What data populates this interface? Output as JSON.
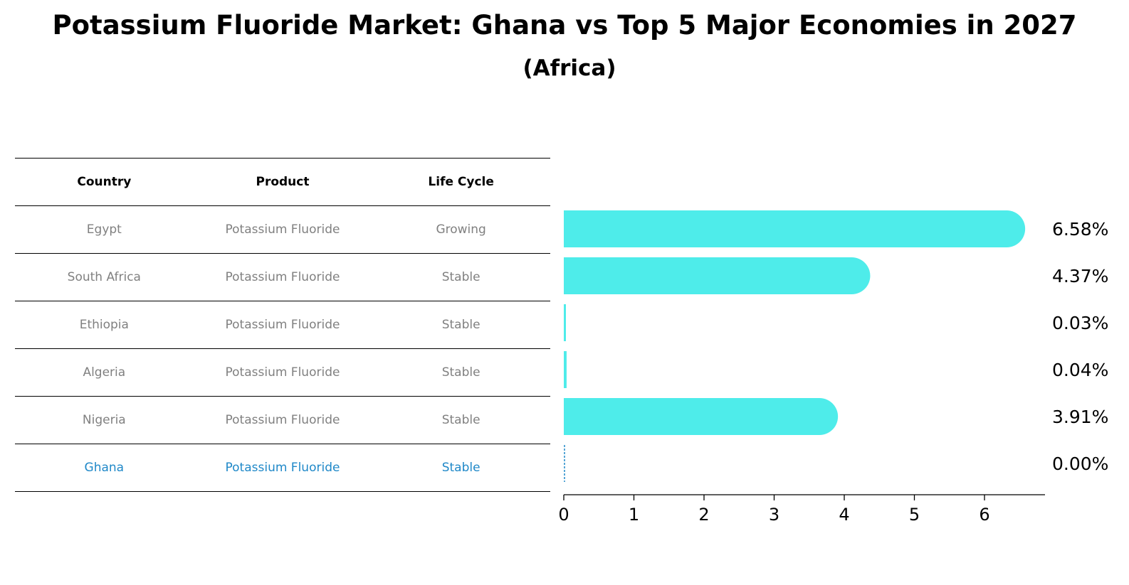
{
  "title": "Potassium Fluoride Market: Ghana vs Top 5 Major Economies in 2027",
  "subtitle": "(Africa)",
  "table": {
    "headers": [
      "Country",
      "Product",
      "Life Cycle"
    ],
    "rows": [
      {
        "country": "Egypt",
        "product": "Potassium Fluoride",
        "life_cycle": "Growing"
      },
      {
        "country": "South Africa",
        "product": "Potassium Fluoride",
        "life_cycle": "Stable"
      },
      {
        "country": "Ethiopia",
        "product": "Potassium Fluoride",
        "life_cycle": "Stable"
      },
      {
        "country": "Algeria",
        "product": "Potassium Fluoride",
        "life_cycle": "Stable"
      },
      {
        "country": "Nigeria",
        "product": "Potassium Fluoride",
        "life_cycle": "Stable"
      },
      {
        "country": "Ghana",
        "product": "Potassium Fluoride",
        "life_cycle": "Stable",
        "highlight": true
      }
    ]
  },
  "colors": {
    "bar": "#4eecea",
    "highlight": "#1f88c8"
  },
  "chart_data": {
    "type": "bar",
    "orientation": "horizontal",
    "categories": [
      "Egypt",
      "South Africa",
      "Ethiopia",
      "Algeria",
      "Nigeria",
      "Ghana"
    ],
    "values": [
      6.58,
      4.37,
      0.03,
      0.04,
      3.91,
      0.0
    ],
    "value_labels": [
      "6.58%",
      "4.37%",
      "0.03%",
      "0.04%",
      "3.91%",
      "0.00%"
    ],
    "xticks": [
      0,
      1,
      2,
      3,
      4,
      5,
      6
    ],
    "xlim": [
      0,
      6.9
    ],
    "grid": false,
    "legend": "none"
  }
}
